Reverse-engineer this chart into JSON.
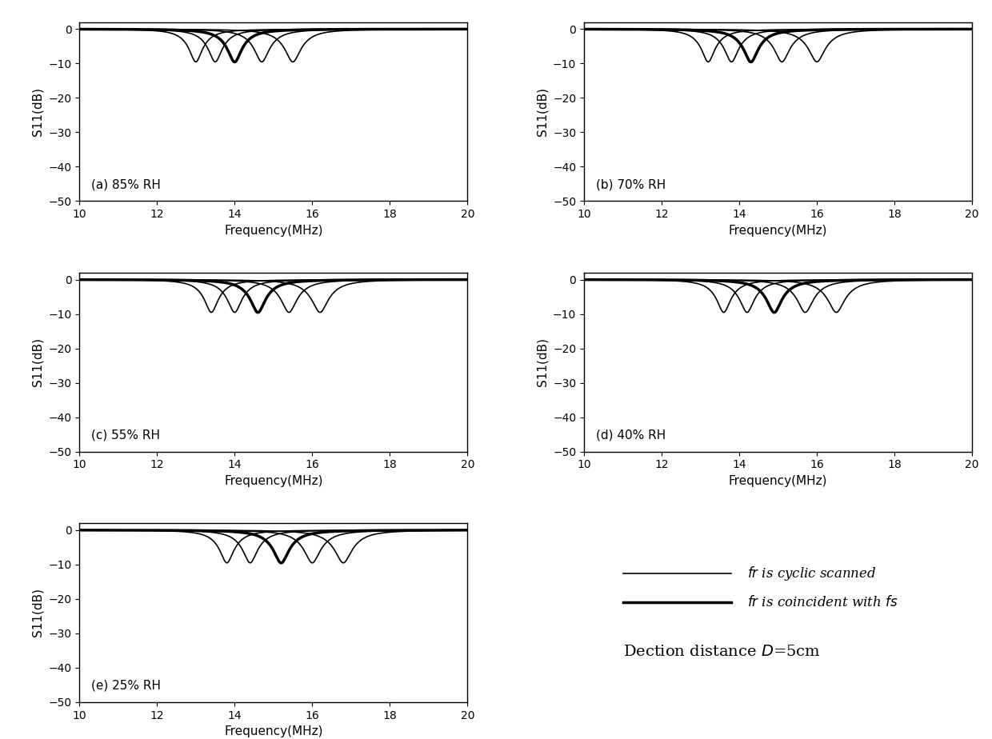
{
  "panels": [
    {
      "label": "(a) 85% RH",
      "fs": 14.0,
      "scan_freqs": [
        13.0,
        13.5,
        14.0,
        14.7,
        15.5
      ],
      "coincident_idx": 2
    },
    {
      "label": "(b) 70% RH",
      "fs": 14.3,
      "scan_freqs": [
        13.2,
        13.8,
        14.3,
        15.1,
        16.0
      ],
      "coincident_idx": 2
    },
    {
      "label": "(c) 55% RH",
      "fs": 14.6,
      "scan_freqs": [
        13.4,
        14.0,
        14.6,
        15.4,
        16.2
      ],
      "coincident_idx": 2
    },
    {
      "label": "(d) 40% RH",
      "fs": 14.9,
      "scan_freqs": [
        13.6,
        14.2,
        14.9,
        15.7,
        16.5
      ],
      "coincident_idx": 2
    },
    {
      "label": "(e) 25% RH",
      "fs": 15.2,
      "scan_freqs": [
        13.8,
        14.4,
        15.2,
        16.0,
        16.8
      ],
      "coincident_idx": 2
    }
  ],
  "xlim": [
    10,
    20
  ],
  "ylim": [
    -50,
    2
  ],
  "xlabel": "Frequency(MHz)",
  "ylabel": "S11(dB)",
  "yticks": [
    0,
    -10,
    -20,
    -30,
    -40,
    -50
  ],
  "xticks": [
    10,
    12,
    14,
    16,
    18,
    20
  ],
  "background_color": "#ffffff",
  "legend_thin_label": "$fr$ is cyclic scanned",
  "legend_thick_label": "$fr$ is coincident with $fs$",
  "annotation_text": "Dection distance $D$=5cm",
  "thin_lw": 1.2,
  "thick_lw": 2.5
}
